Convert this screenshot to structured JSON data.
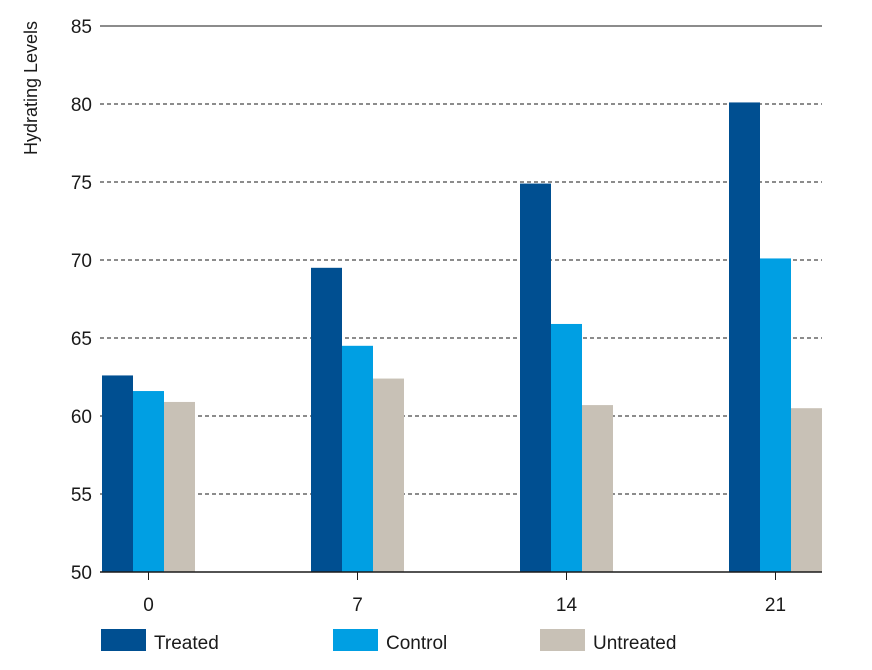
{
  "chart_data": {
    "type": "bar",
    "title": "",
    "xlabel": "",
    "ylabel": "Hydrating Levels",
    "ylim": [
      50,
      85
    ],
    "yticks": [
      50,
      55,
      60,
      65,
      70,
      75,
      80,
      85
    ],
    "categories": [
      "0",
      "7",
      "14",
      "21"
    ],
    "series": [
      {
        "name": "Treated",
        "color": "#004f91",
        "values": [
          62.6,
          69.5,
          74.9,
          80.1
        ]
      },
      {
        "name": "Control",
        "color": "#009fe3",
        "values": [
          61.6,
          64.5,
          65.9,
          70.1
        ]
      },
      {
        "name": "Untreated",
        "color": "#c8c1b6",
        "values": [
          60.9,
          62.4,
          60.7,
          60.5
        ]
      }
    ],
    "grid": true,
    "legend_position": "bottom"
  }
}
